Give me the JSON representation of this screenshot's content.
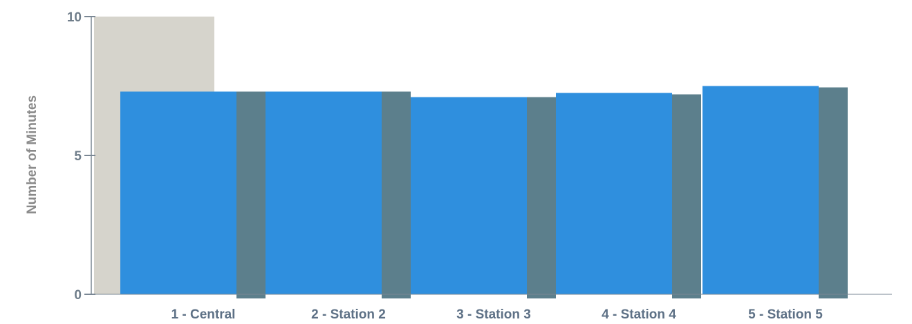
{
  "chart_data": {
    "type": "bar",
    "title": "",
    "xlabel": "",
    "ylabel": "Number of Minutes",
    "ylim": [
      0,
      10
    ],
    "yticks": [
      0,
      5,
      10
    ],
    "grid": false,
    "categories": [
      "1 - Central",
      "2 - Station 2",
      "3 - Station 3",
      "4 - Station 4",
      "5 - Station 5"
    ],
    "series": [
      {
        "values": [
          7.3,
          7.3,
          7.1,
          7.25,
          7.5
        ]
      },
      {
        "values": [
          7.3,
          7.3,
          7.1,
          7.2,
          7.45
        ]
      }
    ],
    "background_bar": {
      "category": "1 - Central",
      "value": 10
    },
    "colors": {
      "series": [
        "#2f8fde",
        "#5c7f8c"
      ],
      "background_bar": "#d6d4cc",
      "axis": "#7a8794",
      "tick_text": "#6f7d8a",
      "category_text": "#5e7186",
      "ylabel_text": "#8a8a8a"
    }
  }
}
